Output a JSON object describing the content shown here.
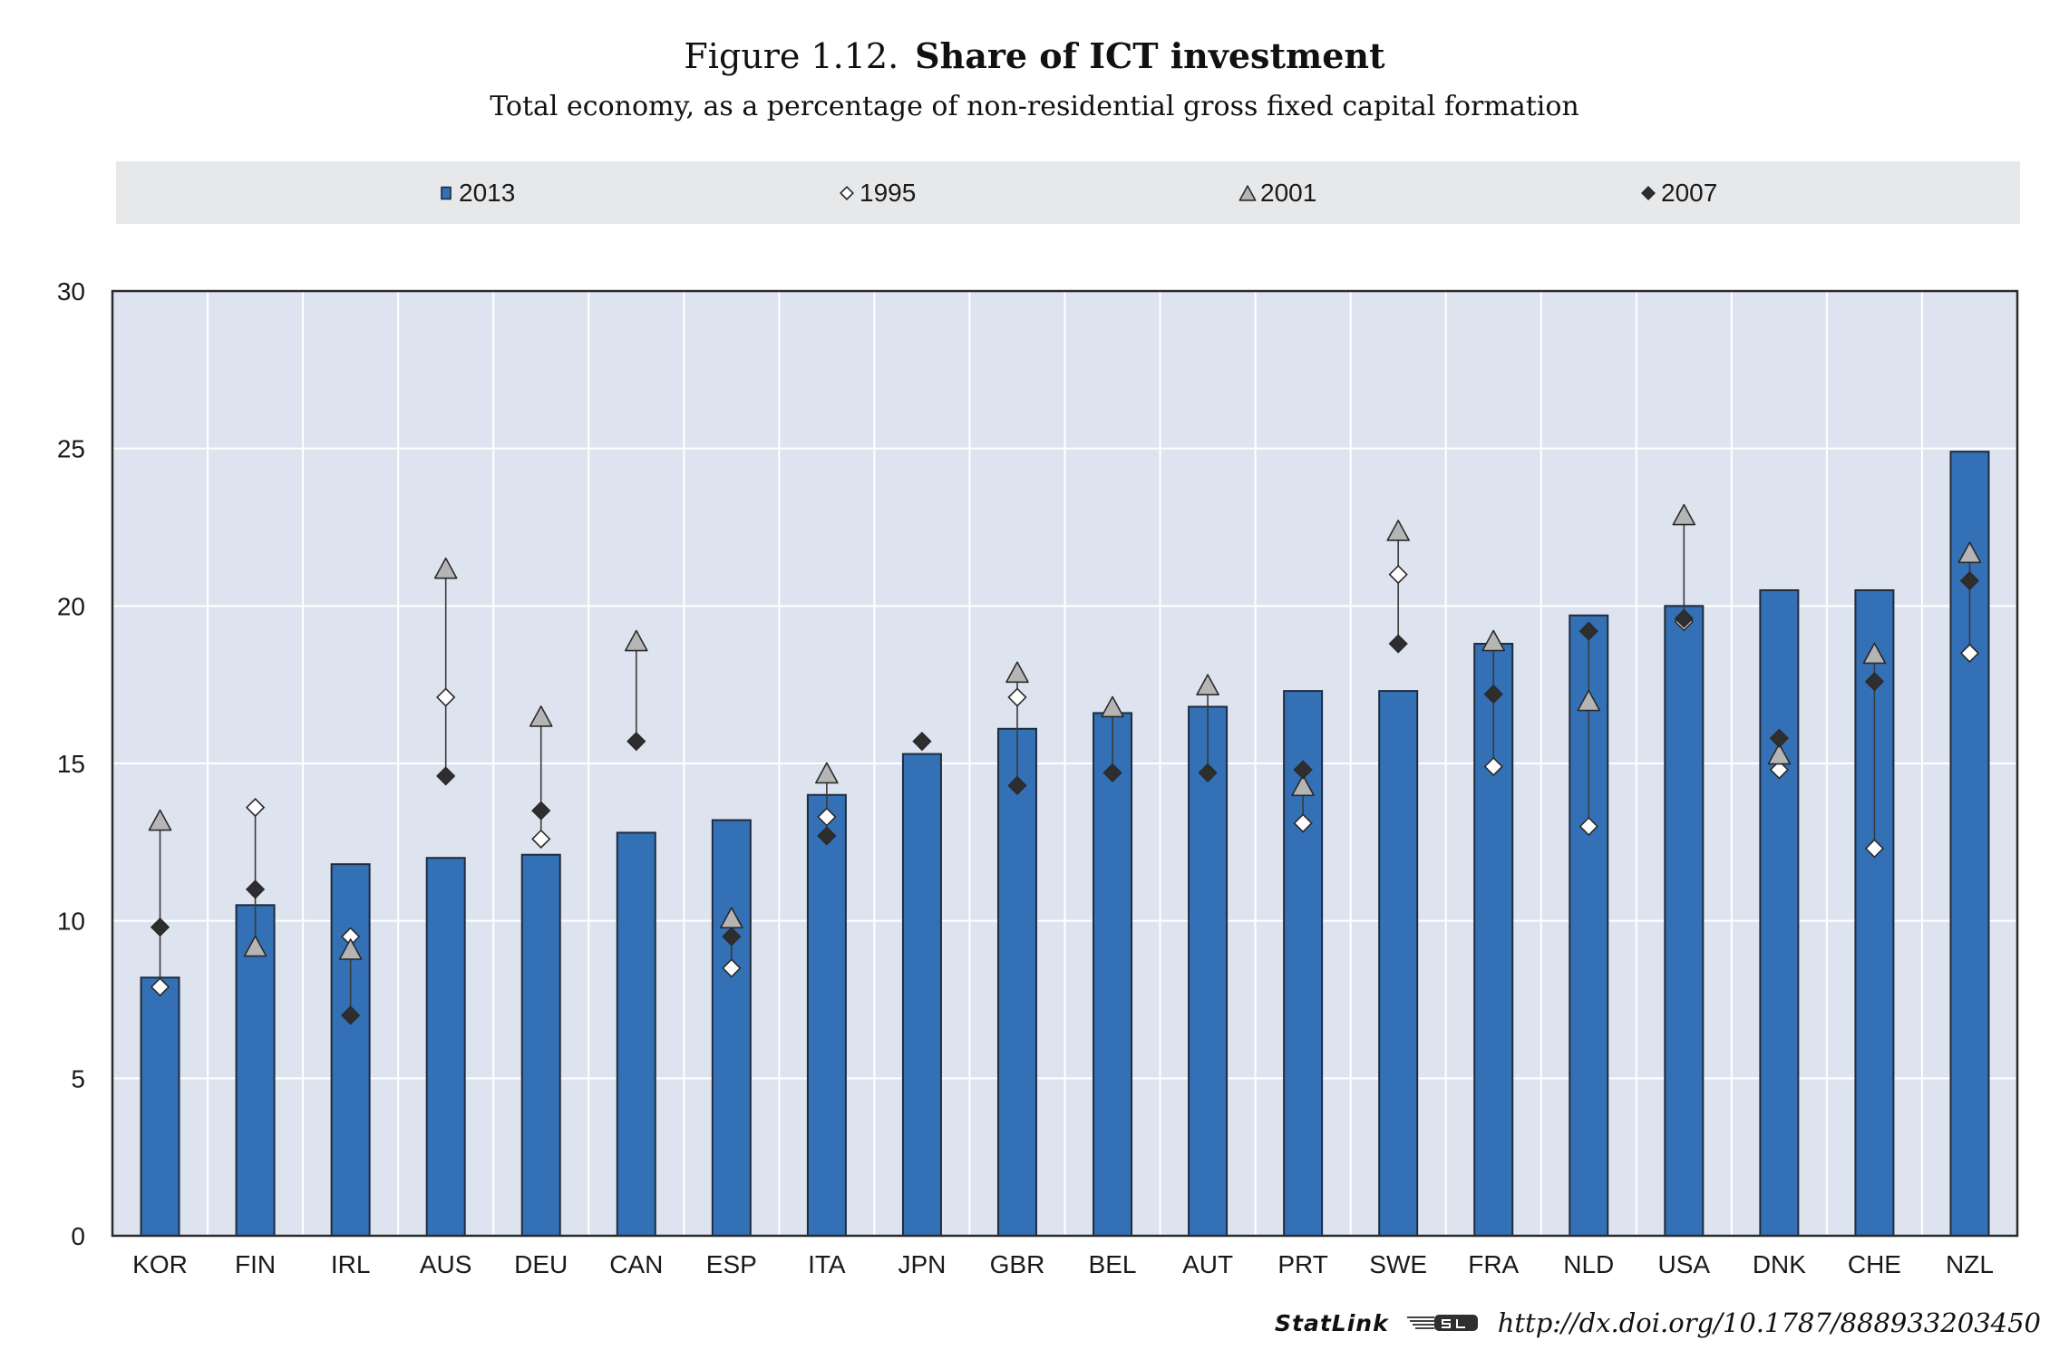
{
  "chart_data": {
    "type": "bar",
    "figure_label": "Figure 1.12.",
    "title": "Share of ICT investment",
    "subtitle": "Total economy, as a percentage of non-residential gross fixed capital formation",
    "categories": [
      "KOR",
      "FIN",
      "IRL",
      "AUS",
      "DEU",
      "CAN",
      "ESP",
      "ITA",
      "JPN",
      "GBR",
      "BEL",
      "AUT",
      "PRT",
      "SWE",
      "FRA",
      "NLD",
      "USA",
      "DNK",
      "CHE",
      "NZL"
    ],
    "series": [
      {
        "name": "2013",
        "kind": "bar",
        "color": "#3470b6",
        "values": [
          8.2,
          10.5,
          11.8,
          12.0,
          12.1,
          12.8,
          13.2,
          14.0,
          15.3,
          16.1,
          16.6,
          16.8,
          17.3,
          17.3,
          18.8,
          19.7,
          20.0,
          20.5,
          20.5,
          24.9
        ]
      },
      {
        "name": "1995",
        "kind": "diamond",
        "color": "#ffffff",
        "values": [
          7.9,
          13.6,
          9.5,
          17.1,
          12.6,
          null,
          8.5,
          13.3,
          null,
          17.1,
          null,
          null,
          13.1,
          21.0,
          14.9,
          13.0,
          19.5,
          14.8,
          12.3,
          18.5
        ]
      },
      {
        "name": "2001",
        "kind": "triangle",
        "color": "#b5b5b5",
        "values": [
          13.2,
          9.2,
          9.1,
          21.2,
          16.5,
          18.9,
          10.1,
          14.7,
          null,
          17.9,
          16.8,
          17.5,
          14.3,
          22.4,
          18.9,
          17.0,
          22.9,
          15.3,
          18.5,
          21.7
        ]
      },
      {
        "name": "2007",
        "kind": "diamond",
        "color": "#2e2e2e",
        "values": [
          9.8,
          11.0,
          7.0,
          14.6,
          13.5,
          15.7,
          9.5,
          12.7,
          15.7,
          14.3,
          14.7,
          14.7,
          14.8,
          18.8,
          17.2,
          19.2,
          19.6,
          15.8,
          17.6,
          20.8
        ]
      }
    ],
    "ylim": [
      0,
      30
    ],
    "yticks": [
      0,
      5,
      10,
      15,
      20,
      25,
      30
    ],
    "grid": true,
    "legend_position": "top",
    "range_lines": true
  },
  "colors": {
    "plot_background": "#dee4ef",
    "gridline": "#ffffff",
    "axis": "#2b2b2b",
    "bar_outline": "#1e2c3c",
    "marker_outline": "#2a2a2a",
    "range_line": "#3a3a3a",
    "legend_background": "#e7e8ea"
  },
  "footer": {
    "statlink_label": "StatLink",
    "url": "http://dx.doi.org/10.1787/888933203450"
  }
}
